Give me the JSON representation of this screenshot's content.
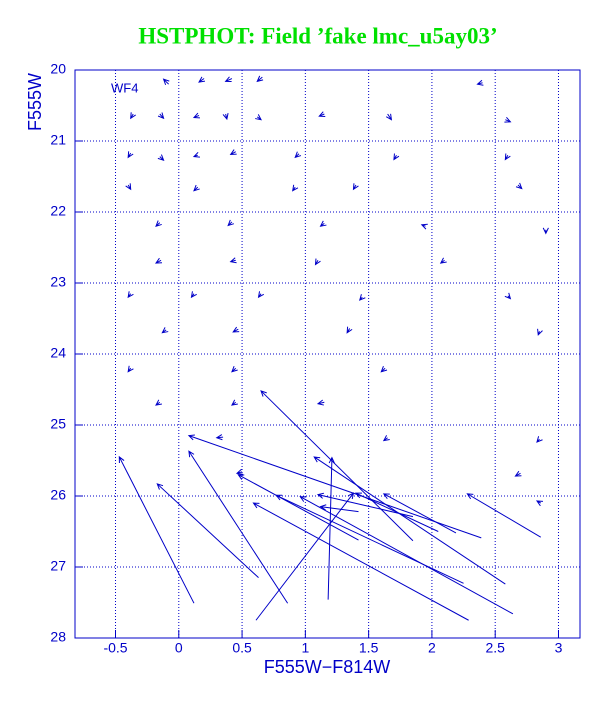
{
  "chart_data": {
    "type": "quiver",
    "title": "HSTPHOT: Field ’fake lmc_u5ay03’",
    "x_label": "F555W−F814W",
    "y_label": "F555W",
    "annotation": "WF4",
    "color": "#0000c8",
    "grid": true,
    "xlim": [
      -0.82,
      3.17
    ],
    "ylim": [
      28,
      20
    ],
    "xticks": [
      -0.5,
      0,
      0.5,
      1,
      1.5,
      2,
      2.5,
      3
    ],
    "yticks": [
      20,
      21,
      22,
      23,
      24,
      25,
      26,
      27,
      28
    ],
    "x": [
      0.12,
      0.63,
      0.86,
      0.61,
      1.18,
      1.85,
      2.39,
      2.64,
      2.29,
      2.58,
      2.25,
      2.86,
      2.19,
      2.05,
      1.42,
      1.85,
      1.42,
      -0.08,
      0.2,
      0.42,
      0.66,
      2.4,
      -0.36,
      -0.15,
      0.16,
      0.37,
      0.62,
      1.15,
      1.65,
      2.58,
      -0.38,
      -0.15,
      0.15,
      0.45,
      0.95,
      1.72,
      2.6,
      -0.4,
      0.15,
      0.92,
      1.4,
      2.68,
      -0.15,
      0.42,
      1.15,
      1.95,
      2.9,
      -0.14,
      0.45,
      1.1,
      2.1,
      -0.38,
      0.12,
      0.65,
      1.45,
      2.6,
      -0.1,
      0.47,
      1.35,
      2.85,
      -0.38,
      0.45,
      1.63,
      -0.15,
      0.45,
      1.15,
      0.35,
      1.65,
      2.85,
      0.5,
      2.7,
      2.86
    ],
    "y": [
      27.51,
      27.15,
      27.51,
      27.75,
      27.46,
      26.63,
      26.59,
      27.66,
      27.75,
      27.24,
      27.23,
      26.58,
      26.52,
      26.5,
      26.62,
      26.29,
      26.22,
      20.2,
      20.12,
      20.12,
      20.1,
      20.18,
      20.62,
      20.62,
      20.64,
      20.62,
      20.66,
      20.62,
      20.62,
      20.7,
      21.17,
      21.22,
      21.2,
      21.15,
      21.18,
      21.2,
      21.2,
      21.62,
      21.65,
      21.65,
      21.62,
      21.62,
      22.15,
      22.14,
      22.16,
      22.2,
      22.25,
      22.68,
      22.68,
      22.68,
      22.68,
      23.15,
      23.15,
      23.15,
      23.2,
      23.18,
      23.66,
      23.65,
      23.64,
      23.68,
      24.2,
      24.2,
      24.2,
      24.68,
      24.68,
      24.68,
      25.17,
      25.18,
      25.2,
      25.66,
      25.68,
      26.1
    ],
    "x2": [
      -0.47,
      -0.17,
      0.08,
      1.38,
      1.21,
      0.65,
      0.08,
      0.96,
      0.59,
      1.07,
      0.77,
      2.28,
      1.62,
      1.4,
      0.47,
      1.1,
      1.12,
      -0.12,
      0.16,
      0.37,
      0.62,
      2.36,
      -0.38,
      -0.12,
      0.12,
      0.38,
      0.65,
      1.11,
      1.68,
      2.62,
      -0.4,
      -0.12,
      0.12,
      0.41,
      0.92,
      1.7,
      2.58,
      -0.38,
      0.12,
      0.9,
      1.38,
      2.71,
      -0.18,
      0.39,
      1.12,
      1.92,
      2.9,
      -0.18,
      0.41,
      1.08,
      2.07,
      -0.4,
      0.1,
      0.63,
      1.43,
      2.62,
      -0.13,
      0.43,
      1.33,
      2.84,
      -0.4,
      0.42,
      1.6,
      -0.18,
      0.42,
      1.1,
      0.3,
      1.62,
      2.83,
      0.46,
      2.66,
      2.83
    ],
    "y2": [
      25.45,
      25.83,
      25.37,
      25.96,
      25.46,
      24.52,
      25.15,
      26.01,
      26.1,
      25.45,
      25.99,
      25.97,
      25.97,
      25.96,
      25.7,
      25.98,
      26.15,
      20.13,
      20.17,
      20.16,
      20.16,
      20.2,
      20.68,
      20.68,
      20.67,
      20.69,
      20.7,
      20.65,
      20.7,
      20.73,
      21.23,
      21.27,
      21.22,
      21.19,
      21.23,
      21.26,
      21.26,
      21.68,
      21.7,
      21.7,
      21.68,
      21.67,
      22.2,
      22.19,
      22.2,
      22.18,
      22.3,
      22.72,
      22.7,
      22.74,
      22.72,
      23.2,
      23.2,
      23.2,
      23.24,
      23.22,
      23.7,
      23.69,
      23.7,
      23.73,
      24.25,
      24.25,
      24.25,
      24.72,
      24.72,
      24.7,
      25.18,
      25.22,
      25.24,
      25.68,
      25.72,
      26.07
    ]
  }
}
